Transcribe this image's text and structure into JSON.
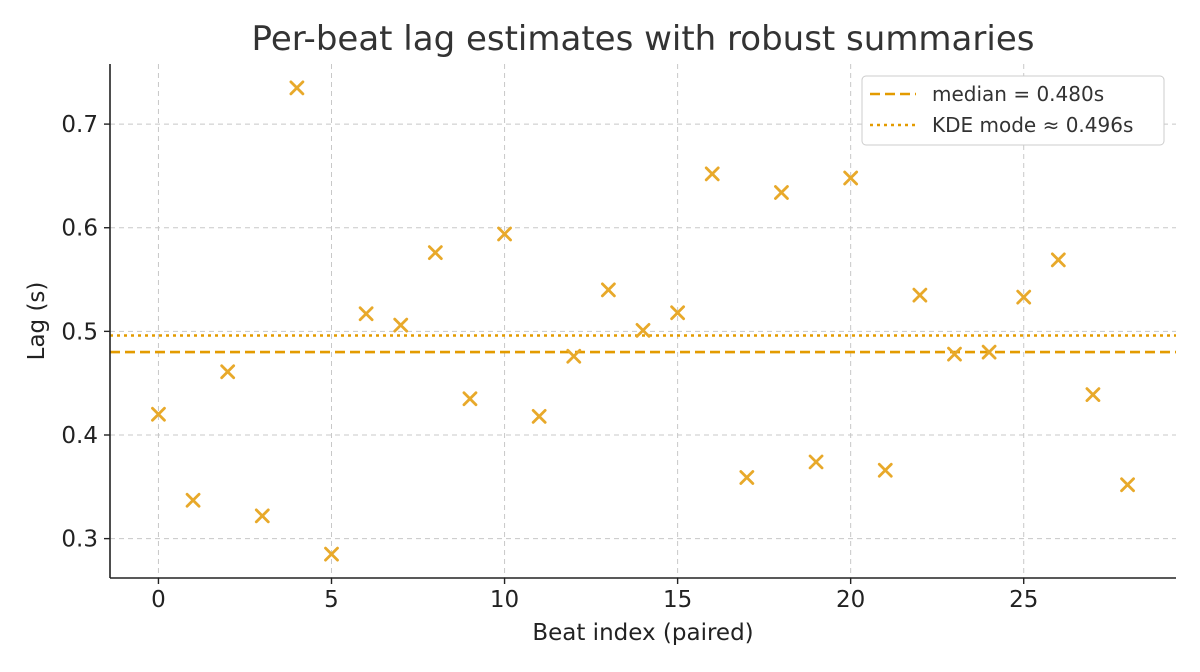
{
  "chart_data": {
    "type": "scatter",
    "title": "Per-beat lag estimates with robust summaries",
    "xlabel": "Beat index (paired)",
    "ylabel": "Lag (s)",
    "xlim": [
      -1.4,
      29.4
    ],
    "ylim": [
      0.262,
      0.758
    ],
    "x_ticks": [
      0,
      5,
      10,
      15,
      20,
      25
    ],
    "y_ticks": [
      0.3,
      0.4,
      0.5,
      0.6,
      0.7
    ],
    "y_tick_labels": [
      "0.3",
      "0.4",
      "0.5",
      "0.6",
      "0.7"
    ],
    "grid": true,
    "legend_position": "top-right",
    "marker": "x",
    "color": "#E8A92A",
    "series": [
      {
        "x": [
          0,
          1,
          2,
          3,
          4,
          5,
          6,
          7,
          8,
          9,
          10,
          11,
          12,
          13,
          14,
          15,
          16,
          17,
          18,
          19,
          20,
          21,
          22,
          23,
          24,
          25,
          26,
          27,
          28
        ],
        "values": [
          0.42,
          0.337,
          0.461,
          0.322,
          0.735,
          0.285,
          0.517,
          0.506,
          0.576,
          0.435,
          0.594,
          0.418,
          0.476,
          0.54,
          0.501,
          0.518,
          0.652,
          0.359,
          0.634,
          0.374,
          0.648,
          0.366,
          0.535,
          0.478,
          0.48,
          0.533,
          0.569,
          0.439,
          0.352
        ]
      }
    ],
    "reference_lines": [
      {
        "label": "median = 0.480s",
        "value": 0.48,
        "style": "dashed",
        "color": "#E39B00"
      },
      {
        "label": "KDE mode ≈ 0.496s",
        "value": 0.496,
        "style": "dotted",
        "color": "#E39B00"
      }
    ]
  }
}
